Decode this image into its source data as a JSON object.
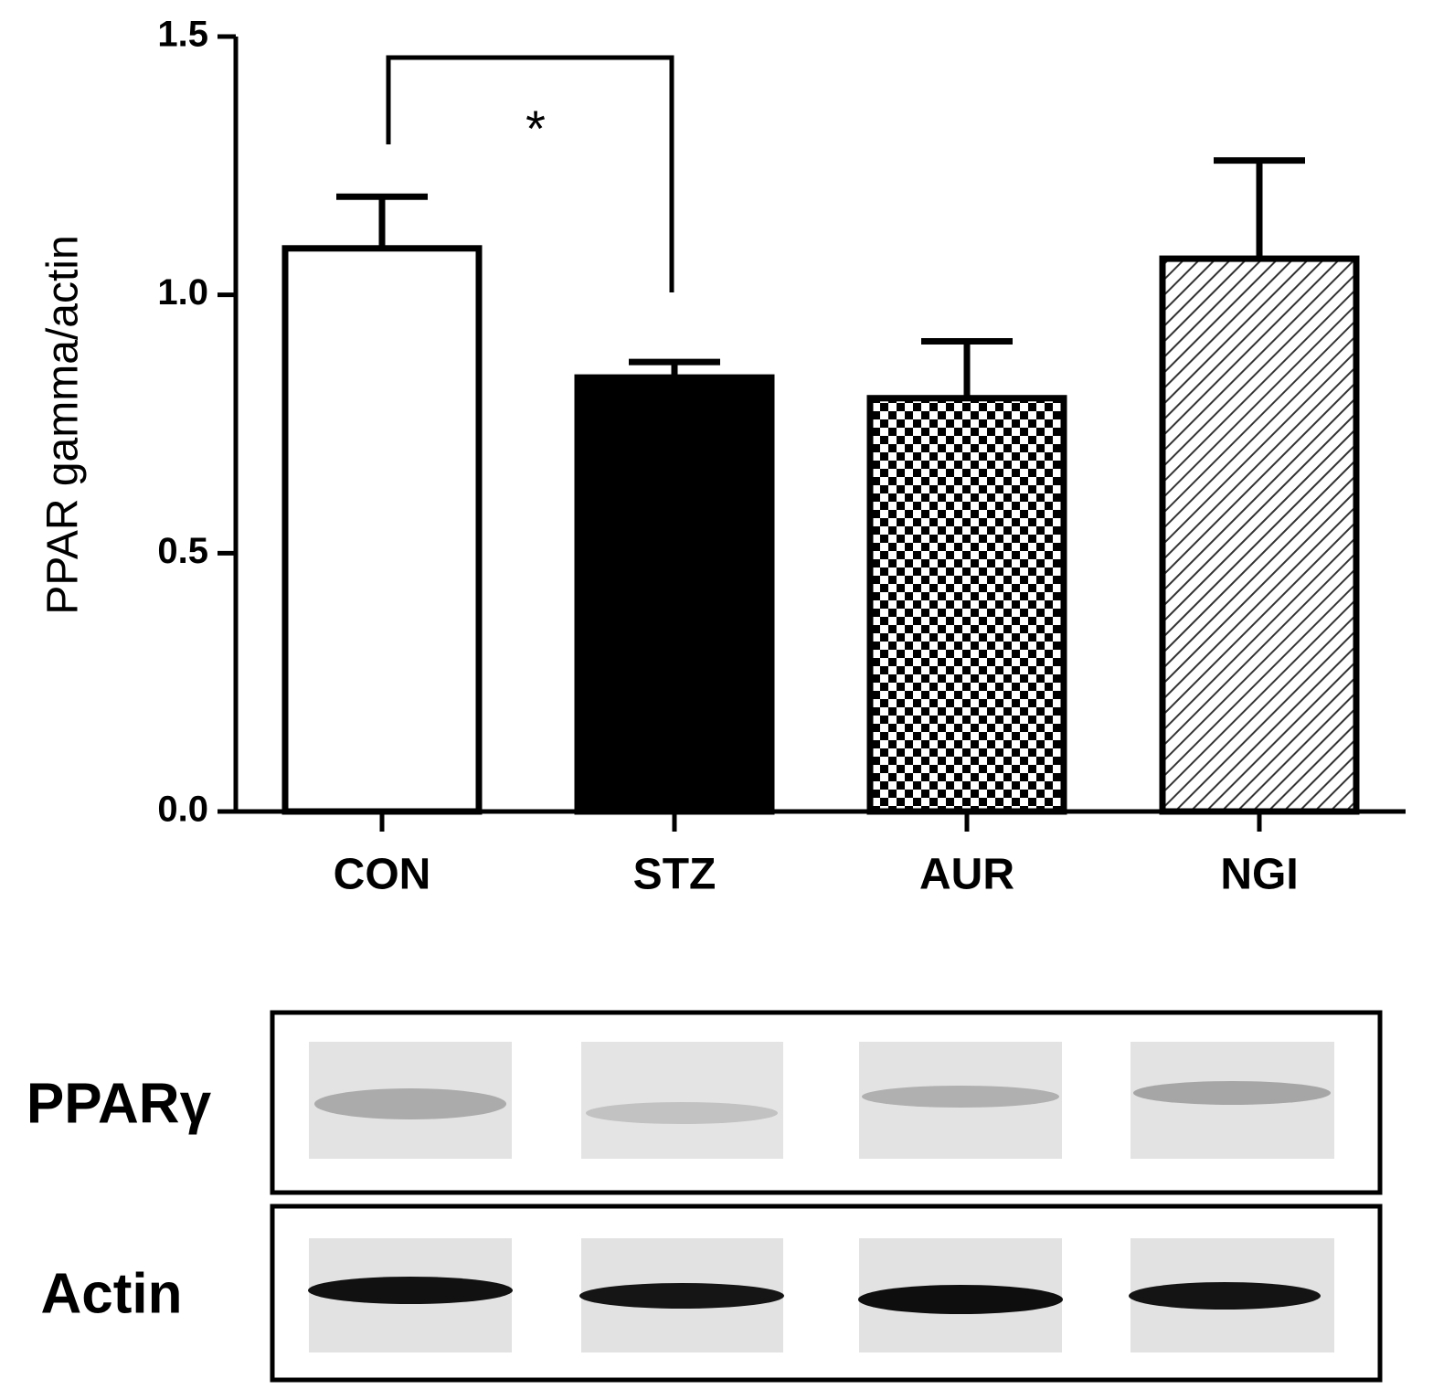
{
  "chart_data": {
    "type": "bar",
    "y_label": "PPAR gamma/actin",
    "categories": [
      "CON",
      "STZ",
      "AUR",
      "NGI"
    ],
    "values": [
      1.09,
      0.84,
      0.8,
      1.07
    ],
    "errors": [
      0.1,
      0.03,
      0.11,
      0.19
    ],
    "fills": [
      "white",
      "black",
      "checker",
      "hatch"
    ],
    "color": "#000000",
    "ylim": [
      0,
      1.5
    ],
    "yticks": [
      {
        "value": 0,
        "label": "0.0"
      },
      {
        "value": 0.5,
        "label": "0.5"
      },
      {
        "value": 1,
        "label": "1.0"
      },
      {
        "value": 1.5,
        "label": "1.5"
      }
    ],
    "annotation": "*"
  },
  "blot": {
    "rows": [
      "PPARγ",
      "Actin"
    ]
  }
}
